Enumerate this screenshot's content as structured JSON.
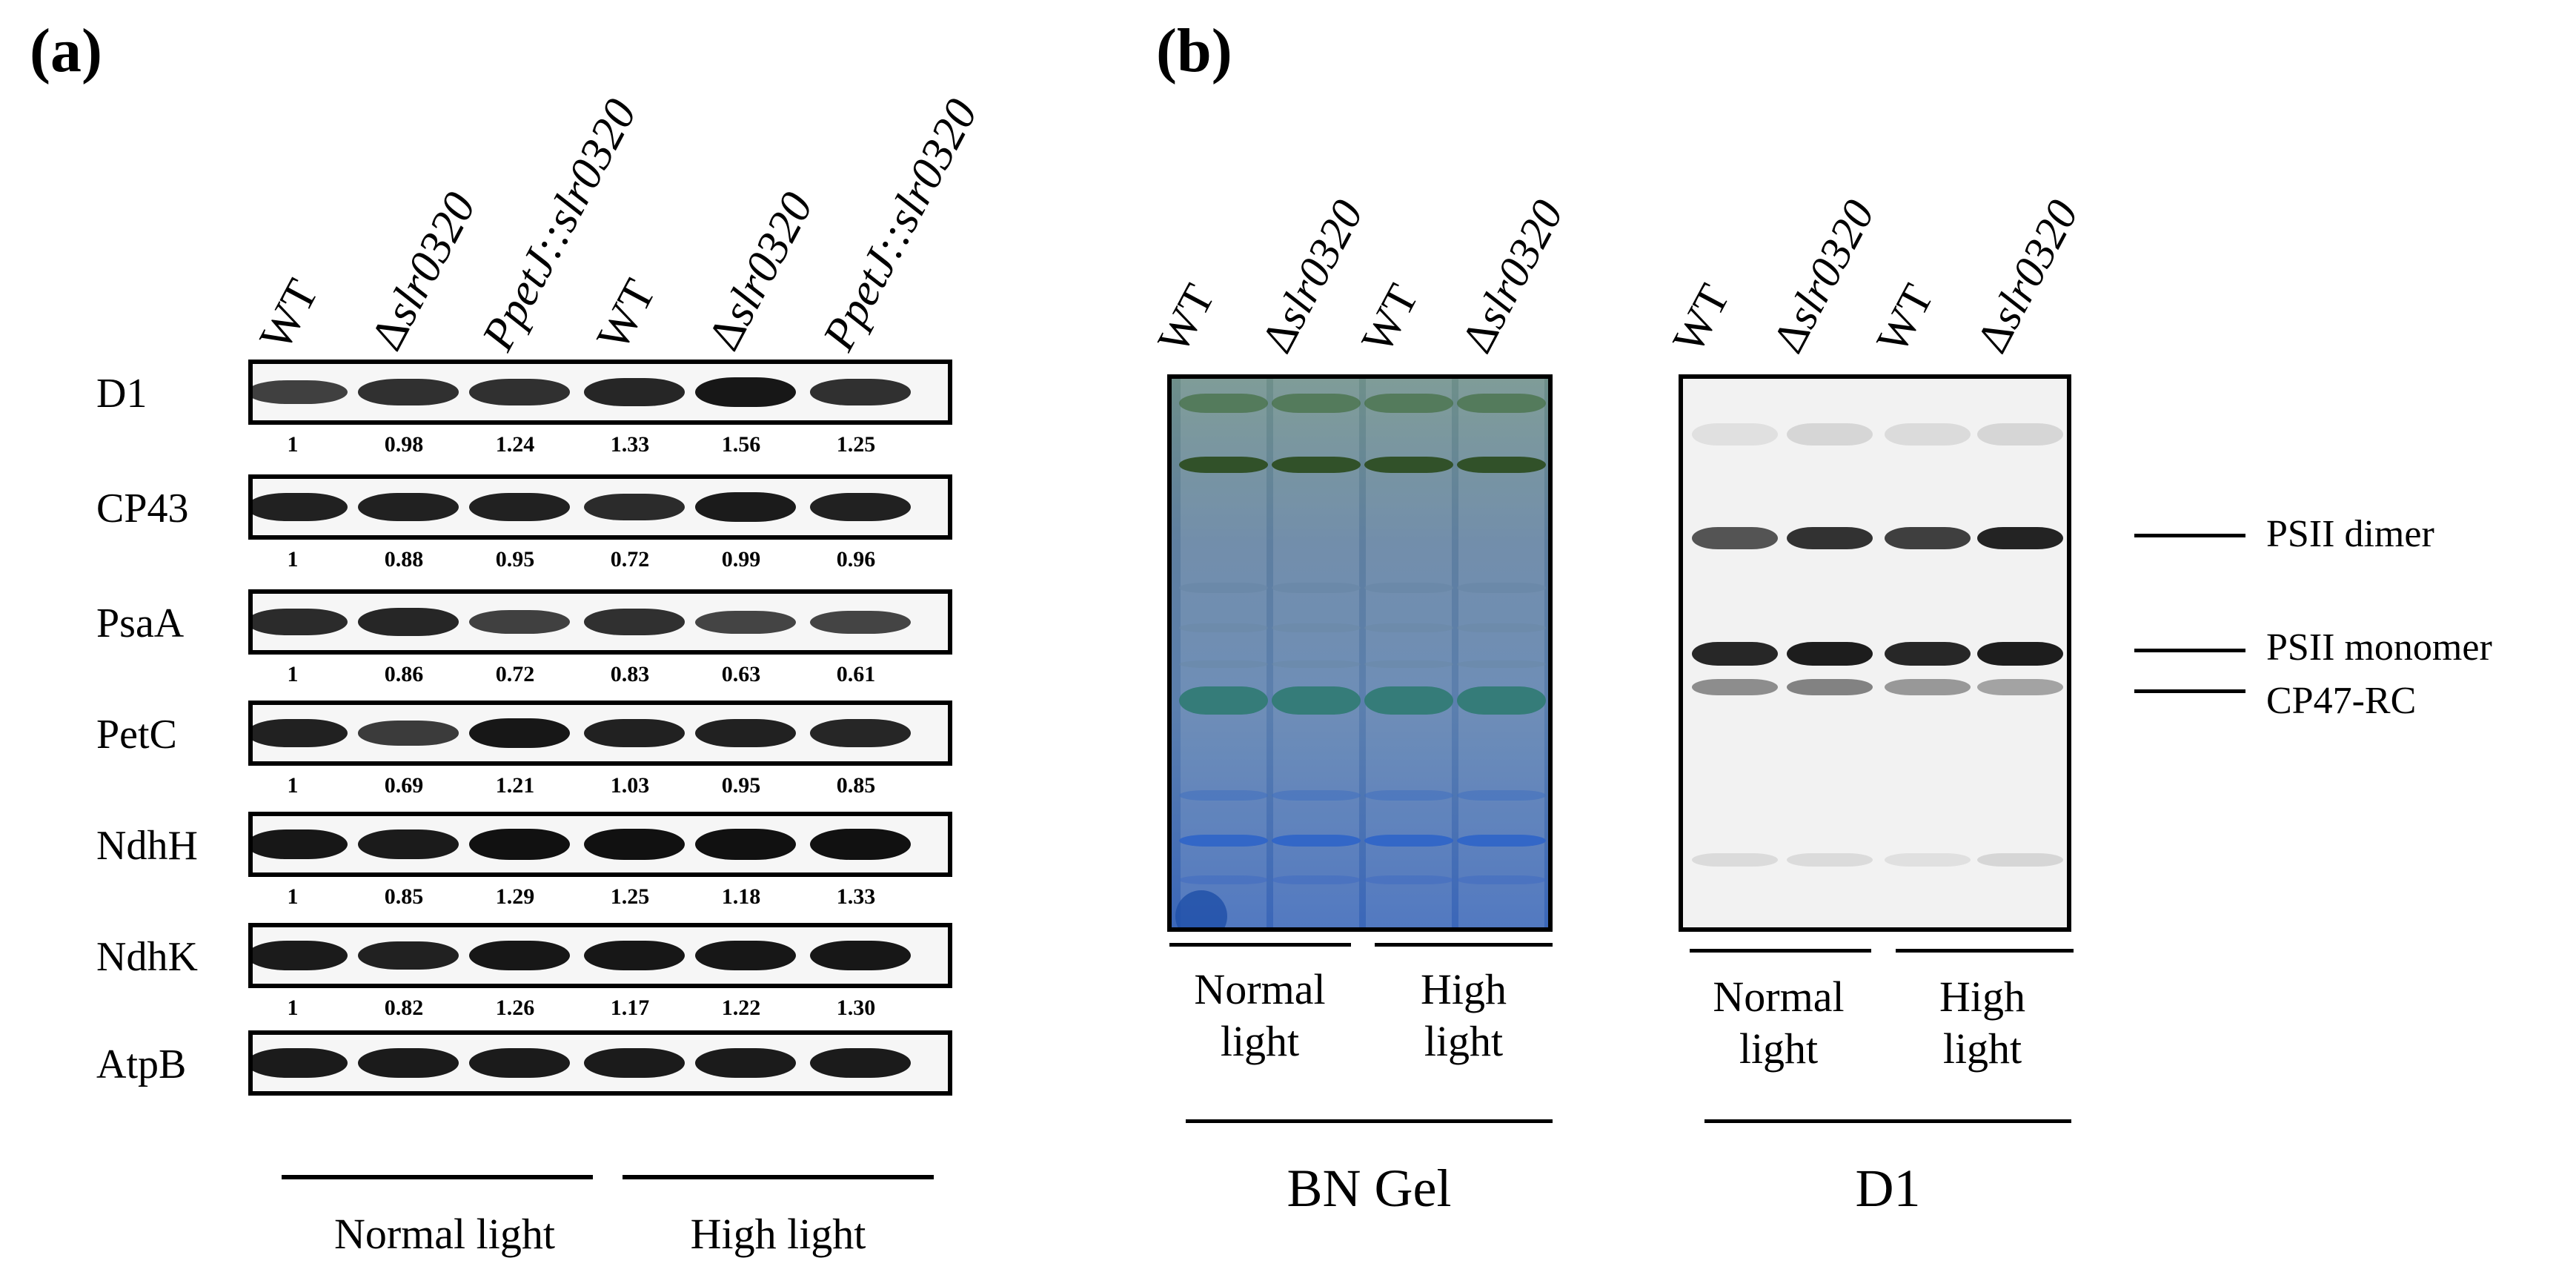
{
  "panel_a": {
    "label": "(a)",
    "lanes": [
      {
        "prefix": "",
        "italic": "",
        "suffix": "WT"
      },
      {
        "prefix": "Δ",
        "italic": "slr0320",
        "suffix": ""
      },
      {
        "prefix": "",
        "italic": "PpetJ::slr0320",
        "suffix": ""
      },
      {
        "prefix": "",
        "italic": "",
        "suffix": "WT"
      },
      {
        "prefix": "Δ",
        "italic": "slr0320",
        "suffix": ""
      },
      {
        "prefix": "",
        "italic": "PpetJ::slr0320",
        "suffix": ""
      }
    ],
    "blots": [
      {
        "name": "D1",
        "values": [
          "1",
          "0.98",
          "1.24",
          "1.33",
          "1.56",
          "1.25"
        ]
      },
      {
        "name": "CP43",
        "values": [
          "1",
          "0.88",
          "0.95",
          "0.72",
          "0.99",
          "0.96"
        ]
      },
      {
        "name": "PsaA",
        "values": [
          "1",
          "0.86",
          "0.72",
          "0.83",
          "0.63",
          "0.61"
        ]
      },
      {
        "name": "PetC",
        "values": [
          "1",
          "0.69",
          "1.21",
          "1.03",
          "0.95",
          "0.85"
        ]
      },
      {
        "name": "NdhH",
        "values": [
          "1",
          "0.85",
          "1.29",
          "1.25",
          "1.18",
          "1.33"
        ]
      },
      {
        "name": "NdhK",
        "values": [
          "1",
          "0.82",
          "1.26",
          "1.17",
          "1.22",
          "1.30"
        ]
      },
      {
        "name": "AtpB",
        "values": []
      }
    ],
    "conditions": [
      "Normal light",
      "High light"
    ]
  },
  "panel_b": {
    "label": "(b)",
    "lanes": [
      {
        "prefix": "",
        "italic": "",
        "suffix": "WT"
      },
      {
        "prefix": "Δ",
        "italic": "slr0320",
        "suffix": ""
      },
      {
        "prefix": "",
        "italic": "",
        "suffix": "WT"
      },
      {
        "prefix": "Δ",
        "italic": "slr0320",
        "suffix": ""
      }
    ],
    "bn_gel": {
      "title": "BN Gel",
      "conditions": [
        "Normal\nlight",
        "High\nlight"
      ]
    },
    "d1_blot": {
      "title": "D1",
      "conditions": [
        "Normal\nlight",
        "High\nlight"
      ],
      "annotations": [
        "PSII dimer",
        "PSII monomer",
        "CP47-RC"
      ]
    }
  },
  "colors": {
    "bn_background": "#5f7fa0",
    "bn_green": "#3f6a3a",
    "bn_teal": "#2f7a72",
    "bn_blue": "#2f64c8"
  }
}
